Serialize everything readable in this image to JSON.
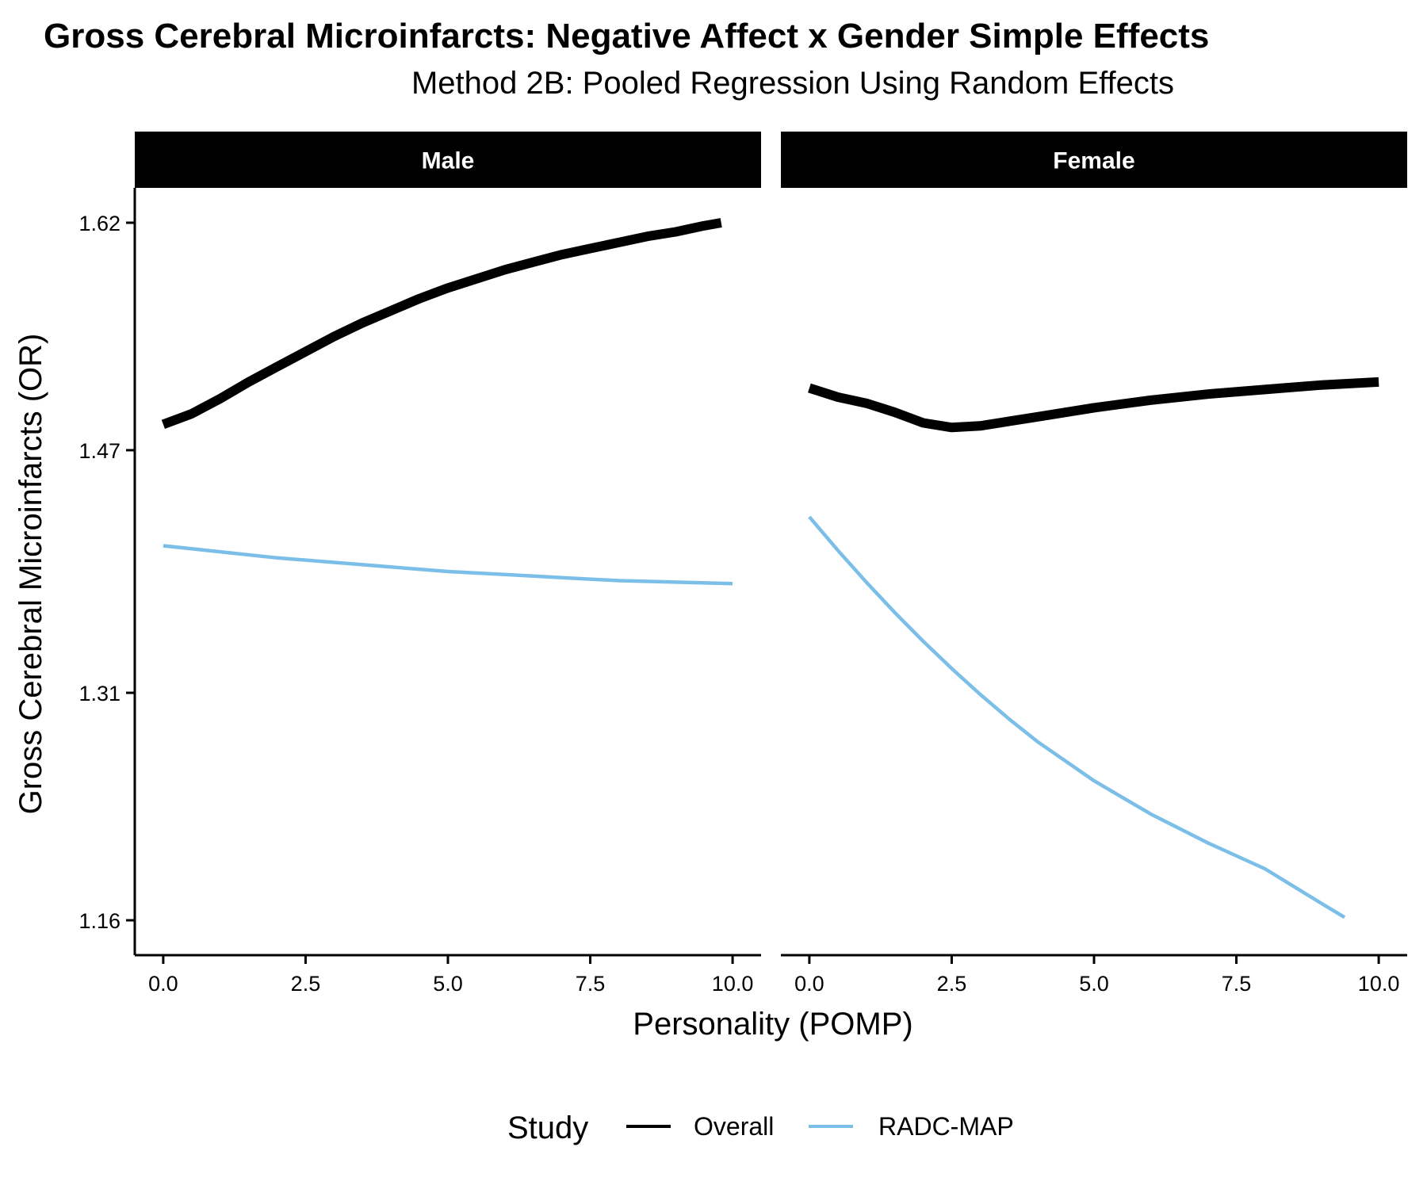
{
  "chart_data": {
    "type": "line",
    "title": "Gross Cerebral Microinfarcts: Negative Affect x Gender Simple Effects",
    "subtitle": "Method 2B: Pooled Regression Using Random Effects",
    "xlabel": "Personality (POMP)",
    "ylabel": "Gross Cerebral Microinfarcts (OR)",
    "x_ticks": [
      "0.0",
      "2.5",
      "5.0",
      "7.5",
      "10.0"
    ],
    "x_tick_values": [
      0,
      2.5,
      5,
      7.5,
      10
    ],
    "y_ticks": [
      "1.16",
      "1.31",
      "1.47",
      "1.62"
    ],
    "y_tick_values": [
      1.16,
      1.31,
      1.47,
      1.62
    ],
    "xlim": [
      -0.5,
      10.5
    ],
    "ylim": [
      1.137,
      1.643
    ],
    "grid": false,
    "legend": {
      "title": "Study",
      "position": "bottom",
      "entries": [
        {
          "name": "Overall",
          "color": "#000000"
        },
        {
          "name": "RADC-MAP",
          "color": "#7bbfe8"
        }
      ]
    },
    "panels": [
      {
        "label": "Male",
        "series": [
          {
            "name": "Overall",
            "color": "#000000",
            "x": [
              0,
              0.5,
              1,
              1.5,
              2,
              2.5,
              3,
              3.5,
              4,
              4.5,
              5,
              5.5,
              6,
              6.5,
              7,
              7.5,
              8,
              8.5,
              9,
              9.5,
              9.8
            ],
            "y": [
              1.487,
              1.494,
              1.504,
              1.515,
              1.525,
              1.535,
              1.545,
              1.554,
              1.562,
              1.57,
              1.577,
              1.583,
              1.589,
              1.594,
              1.599,
              1.603,
              1.607,
              1.611,
              1.614,
              1.618,
              1.62
            ]
          },
          {
            "name": "RADC-MAP",
            "color": "#7bbfe8",
            "x": [
              0,
              1,
              2,
              3,
              4,
              5,
              6,
              7,
              8,
              9,
              10
            ],
            "y": [
              1.407,
              1.403,
              1.399,
              1.396,
              1.393,
              1.39,
              1.388,
              1.386,
              1.384,
              1.383,
              1.382
            ]
          }
        ]
      },
      {
        "label": "Female",
        "series": [
          {
            "name": "Overall",
            "color": "#000000",
            "x": [
              0,
              0.5,
              1,
              1.5,
              2,
              2.5,
              3,
              3.5,
              4,
              5,
              6,
              7,
              8,
              9,
              10
            ],
            "y": [
              1.511,
              1.505,
              1.501,
              1.495,
              1.488,
              1.485,
              1.486,
              1.489,
              1.492,
              1.498,
              1.503,
              1.507,
              1.51,
              1.513,
              1.515
            ]
          },
          {
            "name": "RADC-MAP",
            "color": "#7bbfe8",
            "x": [
              0,
              0.5,
              1,
              1.5,
              2,
              2.5,
              3,
              3.5,
              4,
              5,
              6,
              7,
              8,
              9,
              9.4
            ],
            "y": [
              1.426,
              1.404,
              1.383,
              1.363,
              1.344,
              1.326,
              1.309,
              1.293,
              1.278,
              1.252,
              1.23,
              1.211,
              1.194,
              1.171,
              1.162
            ]
          }
        ]
      }
    ]
  }
}
